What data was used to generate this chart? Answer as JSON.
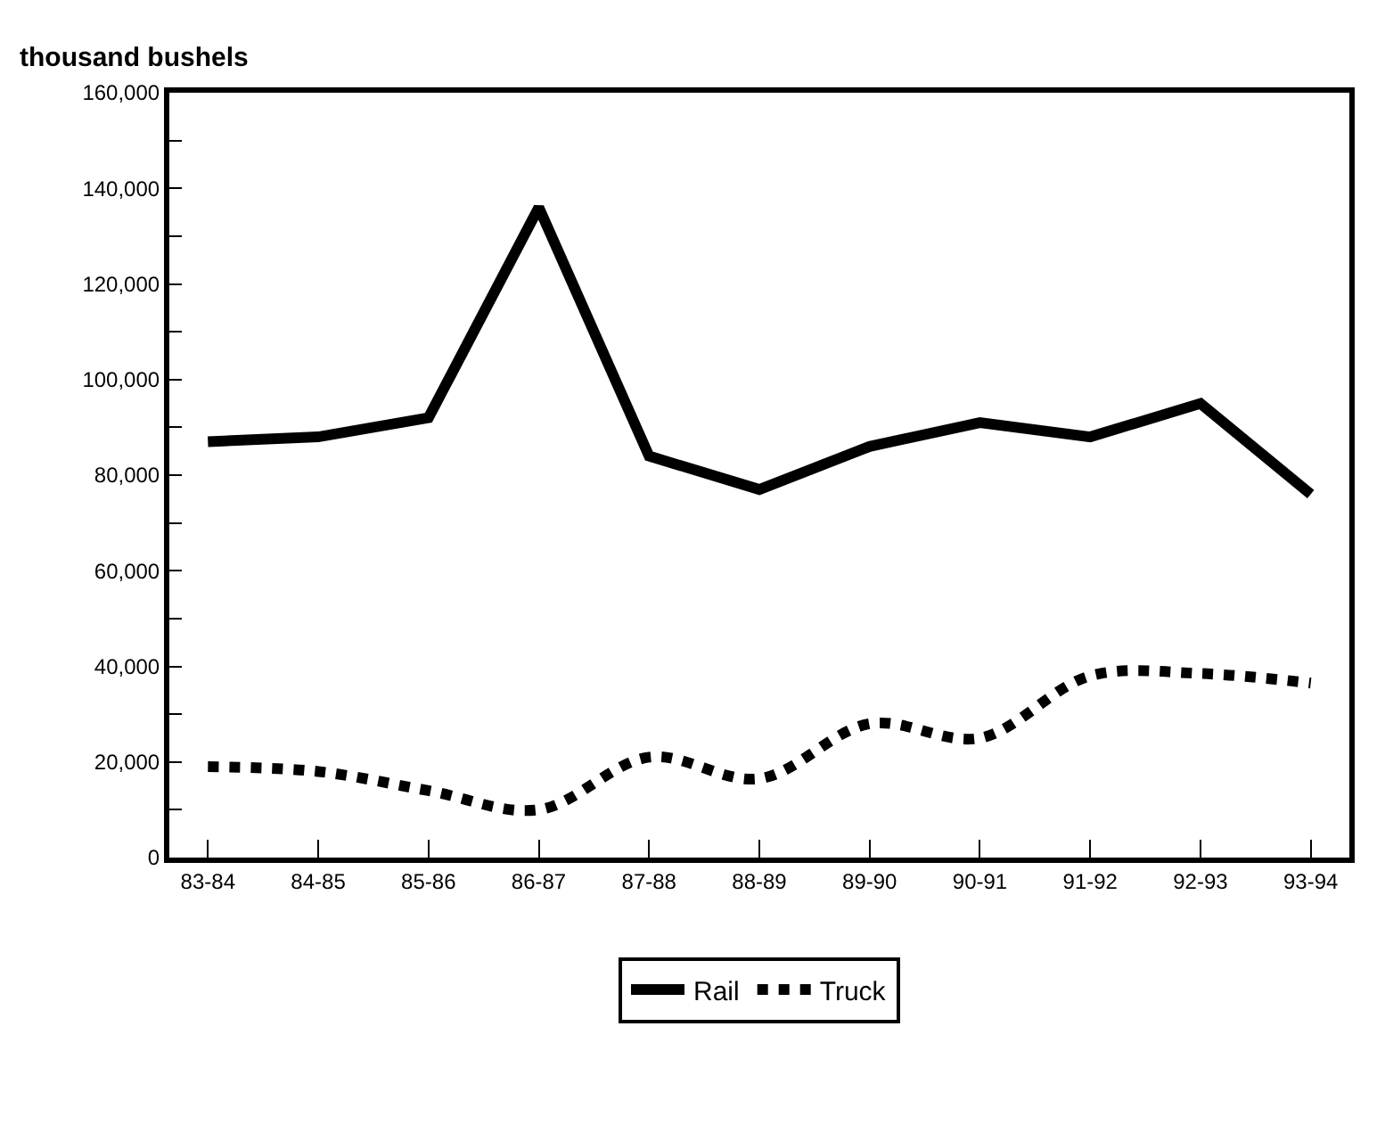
{
  "chart_data": {
    "type": "line",
    "ylabel": "thousand bushels",
    "categories": [
      "83-84",
      "84-85",
      "85-86",
      "86-87",
      "87-88",
      "88-89",
      "89-90",
      "90-91",
      "91-92",
      "92-93",
      "93-94"
    ],
    "series": [
      {
        "name": "Rail",
        "color": "#000000",
        "line_style": "solid",
        "values": [
          87000,
          88000,
          92000,
          136000,
          84000,
          77000,
          86000,
          91000,
          88000,
          95000,
          76000
        ]
      },
      {
        "name": "Truck",
        "color": "#000000",
        "line_style": "dotted",
        "values": [
          19000,
          18000,
          14000,
          10000,
          21000,
          16500,
          28000,
          25000,
          38000,
          38500,
          36500
        ]
      }
    ],
    "ylim": [
      0,
      160000
    ],
    "yticks": [
      {
        "value": 0,
        "label": "0"
      },
      {
        "value": 10000,
        "label": null
      },
      {
        "value": 20000,
        "label": "20,000"
      },
      {
        "value": 30000,
        "label": null
      },
      {
        "value": 40000,
        "label": "40,000"
      },
      {
        "value": 50000,
        "label": null
      },
      {
        "value": 60000,
        "label": "60,000"
      },
      {
        "value": 70000,
        "label": null
      },
      {
        "value": 80000,
        "label": "80,000"
      },
      {
        "value": 90000,
        "label": null
      },
      {
        "value": 100000,
        "label": "100,000"
      },
      {
        "value": 110000,
        "label": null
      },
      {
        "value": 120000,
        "label": "120,000"
      },
      {
        "value": 130000,
        "label": null
      },
      {
        "value": 140000,
        "label": "140,000"
      },
      {
        "value": 150000,
        "label": null
      },
      {
        "value": 160000,
        "label": "160,000"
      }
    ],
    "grid": false,
    "legend": "bottom",
    "marker": "none"
  }
}
